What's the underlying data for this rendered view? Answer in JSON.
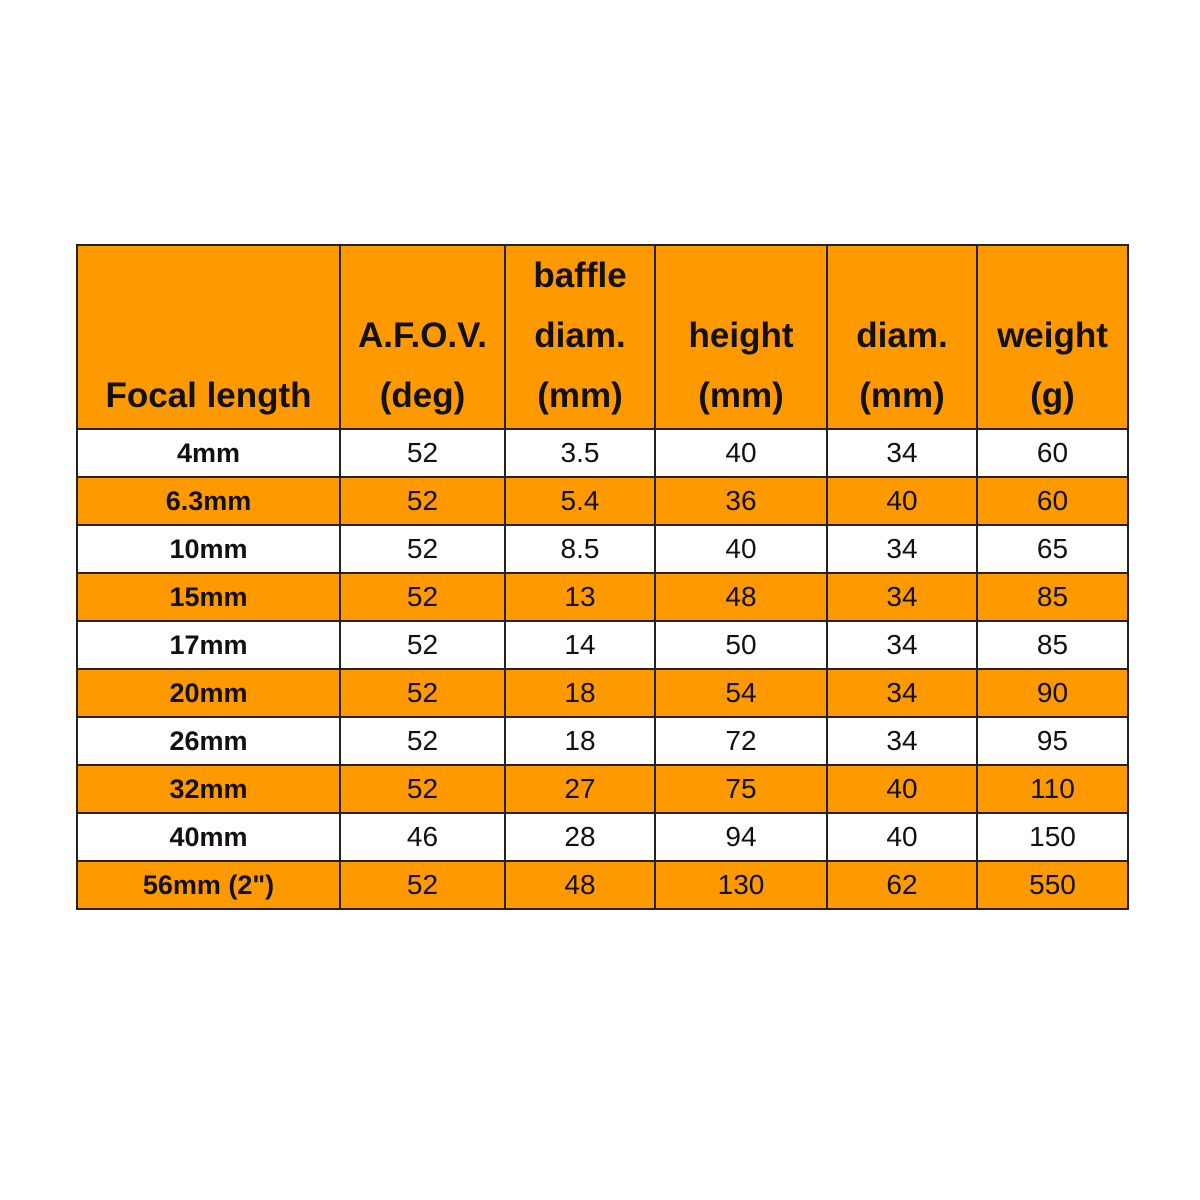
{
  "colors": {
    "header_bg": "#FF9900",
    "alt_row_bg": "#FF9900",
    "row_bg": "#FFFFFF",
    "border": "#222222"
  },
  "chart_data": {
    "type": "table",
    "columns": [
      [
        "Focal length"
      ],
      [
        "A.F.O.V.",
        "(deg)"
      ],
      [
        "baffle",
        "diam.",
        "(mm)"
      ],
      [
        "height",
        "(mm)"
      ],
      [
        "diam.",
        "(mm)"
      ],
      [
        "weight",
        "(g)"
      ]
    ],
    "rows": [
      [
        "4mm",
        "52",
        "3.5",
        "40",
        "34",
        "60"
      ],
      [
        "6.3mm",
        "52",
        "5.4",
        "36",
        "40",
        "60"
      ],
      [
        "10mm",
        "52",
        "8.5",
        "40",
        "34",
        "65"
      ],
      [
        "15mm",
        "52",
        "13",
        "48",
        "34",
        "85"
      ],
      [
        "17mm",
        "52",
        "14",
        "50",
        "34",
        "85"
      ],
      [
        "20mm",
        "52",
        "18",
        "54",
        "34",
        "90"
      ],
      [
        "26mm",
        "52",
        "18",
        "72",
        "34",
        "95"
      ],
      [
        "32mm",
        "52",
        "27",
        "75",
        "40",
        "110"
      ],
      [
        "40mm",
        "46",
        "28",
        "94",
        "40",
        "150"
      ],
      [
        "56mm (2\")",
        "52",
        "48",
        "130",
        "62",
        "550"
      ]
    ]
  }
}
